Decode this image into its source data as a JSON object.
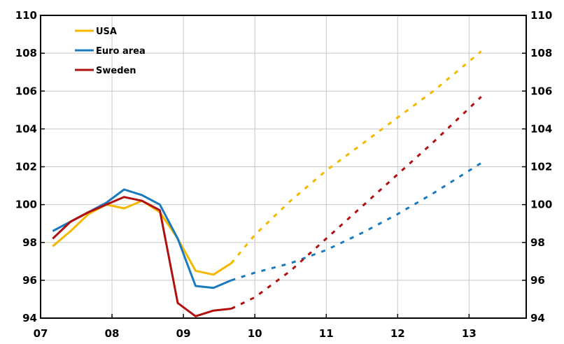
{
  "chart_data": {
    "type": "line",
    "title": "",
    "xlabel": "",
    "ylabel": "",
    "xlim": [
      7.0,
      13.8
    ],
    "ylim": [
      94,
      110
    ],
    "x_ticks": [
      {
        "label": "07",
        "value": 7
      },
      {
        "label": "08",
        "value": 8
      },
      {
        "label": "09",
        "value": 9
      },
      {
        "label": "10",
        "value": 10
      },
      {
        "label": "11",
        "value": 11
      },
      {
        "label": "12",
        "value": 12
      },
      {
        "label": "13",
        "value": 13
      }
    ],
    "y_ticks": [
      94,
      96,
      98,
      100,
      102,
      104,
      106,
      108,
      110
    ],
    "grid": true,
    "legend_position": "top-left",
    "series": [
      {
        "name": "USA",
        "color": "#f5b800",
        "actual": [
          [
            7.17,
            97.8
          ],
          [
            7.42,
            98.6
          ],
          [
            7.67,
            99.5
          ],
          [
            7.92,
            100.0
          ],
          [
            8.17,
            99.8
          ],
          [
            8.42,
            100.2
          ],
          [
            8.67,
            99.6
          ],
          [
            8.92,
            98.2
          ],
          [
            9.17,
            96.5
          ],
          [
            9.42,
            96.3
          ],
          [
            9.67,
            96.9
          ]
        ],
        "forecast": [
          [
            9.67,
            96.9
          ],
          [
            10.0,
            98.4
          ],
          [
            10.5,
            100.2
          ],
          [
            11.0,
            101.8
          ],
          [
            11.5,
            103.2
          ],
          [
            12.0,
            104.6
          ],
          [
            12.5,
            106.0
          ],
          [
            13.17,
            108.1
          ]
        ]
      },
      {
        "name": "Euro area",
        "color": "#1a7ac0",
        "actual": [
          [
            7.17,
            98.6
          ],
          [
            7.42,
            99.1
          ],
          [
            7.67,
            99.6
          ],
          [
            7.92,
            100.1
          ],
          [
            8.17,
            100.8
          ],
          [
            8.42,
            100.5
          ],
          [
            8.67,
            100.0
          ],
          [
            8.92,
            98.2
          ],
          [
            9.17,
            95.7
          ],
          [
            9.42,
            95.6
          ],
          [
            9.67,
            96.0
          ]
        ],
        "forecast": [
          [
            9.67,
            96.0
          ],
          [
            10.0,
            96.4
          ],
          [
            10.5,
            96.9
          ],
          [
            11.0,
            97.6
          ],
          [
            11.5,
            98.5
          ],
          [
            12.0,
            99.5
          ],
          [
            12.5,
            100.6
          ],
          [
            13.17,
            102.2
          ]
        ]
      },
      {
        "name": "Sweden",
        "color": "#b01010",
        "actual": [
          [
            7.17,
            98.2
          ],
          [
            7.42,
            99.1
          ],
          [
            7.67,
            99.6
          ],
          [
            7.92,
            100.0
          ],
          [
            8.17,
            100.4
          ],
          [
            8.42,
            100.2
          ],
          [
            8.67,
            99.7
          ],
          [
            8.92,
            94.8
          ],
          [
            9.17,
            94.1
          ],
          [
            9.42,
            94.4
          ],
          [
            9.67,
            94.5
          ]
        ],
        "forecast": [
          [
            9.67,
            94.5
          ],
          [
            10.0,
            95.1
          ],
          [
            10.5,
            96.5
          ],
          [
            11.0,
            98.2
          ],
          [
            11.5,
            99.9
          ],
          [
            12.0,
            101.6
          ],
          [
            12.5,
            103.3
          ],
          [
            13.17,
            105.7
          ]
        ]
      }
    ]
  }
}
